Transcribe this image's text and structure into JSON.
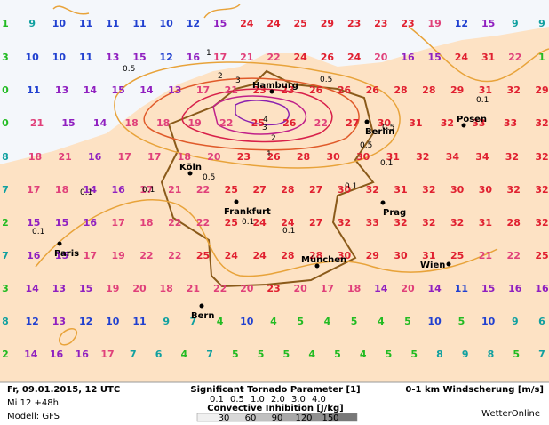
{
  "map": {
    "grid": [
      [
        "1",
        "9",
        "10",
        "11",
        "11",
        "11",
        "10",
        "12",
        "15",
        "24",
        "24",
        "25",
        "29",
        "23",
        "23",
        "23",
        "19",
        "12",
        "15",
        "9",
        "9"
      ],
      [
        "3",
        "10",
        "10",
        "11",
        "13",
        "15",
        "12",
        "16",
        "17",
        "21",
        "22",
        "24",
        "26",
        "24",
        "20",
        "16",
        "15",
        "24",
        "31",
        "22",
        "1"
      ],
      [
        "0",
        "11",
        "13",
        "14",
        "15",
        "14",
        "13",
        "17",
        "21",
        "23",
        "23",
        "26",
        "26",
        "26",
        "28",
        "28",
        "29",
        "31",
        "32",
        "29"
      ],
      [
        "0",
        "21",
        "15",
        "14",
        "18",
        "18",
        "19",
        "22",
        "25",
        "26",
        "22",
        "27",
        "30",
        "31",
        "32",
        "33",
        "33",
        "32"
      ],
      [
        "8",
        "18",
        "21",
        "16",
        "17",
        "17",
        "18",
        "20",
        "23",
        "26",
        "28",
        "30",
        "30",
        "31",
        "32",
        "34",
        "34",
        "32",
        "32"
      ],
      [
        "7",
        "17",
        "18",
        "14",
        "16",
        "17",
        "21",
        "22",
        "25",
        "27",
        "28",
        "27",
        "30",
        "32",
        "31",
        "32",
        "30",
        "30",
        "32",
        "32"
      ],
      [
        "2",
        "15",
        "15",
        "16",
        "17",
        "18",
        "22",
        "22",
        "25",
        "24",
        "24",
        "27",
        "32",
        "33",
        "32",
        "32",
        "32",
        "31",
        "28",
        "32"
      ],
      [
        "7",
        "16",
        "15",
        "17",
        "19",
        "22",
        "22",
        "25",
        "24",
        "24",
        "28",
        "28",
        "30",
        "29",
        "30",
        "31",
        "25",
        "21",
        "22",
        "25"
      ],
      [
        "3",
        "14",
        "13",
        "15",
        "19",
        "20",
        "18",
        "21",
        "22",
        "20",
        "23",
        "20",
        "17",
        "18",
        "14",
        "20",
        "14",
        "11",
        "15",
        "16",
        "16"
      ],
      [
        "8",
        "12",
        "13",
        "12",
        "10",
        "11",
        "9",
        "7",
        "4",
        "10",
        "4",
        "5",
        "4",
        "5",
        "4",
        "5",
        "10",
        "5",
        "10",
        "9",
        "6"
      ],
      [
        "2",
        "14",
        "16",
        "16",
        "17",
        "7",
        "6",
        "4",
        "7",
        "5",
        "5",
        "5",
        "4",
        "5",
        "4",
        "5",
        "5",
        "8",
        "9",
        "8",
        "5",
        "7"
      ]
    ],
    "cities": [
      "Hamburg",
      "Berlin",
      "Posen",
      "Köln",
      "Frankfurt",
      "Prag",
      "Paris",
      "München",
      "Wien",
      "Bern"
    ],
    "contour_labels": [
      "0.5",
      "1",
      "2",
      "3",
      "4",
      "3",
      "2",
      "1",
      "0.5",
      "0.5",
      "0.1",
      "0.1",
      "0.1",
      "0.1",
      "0.1",
      "0.1",
      "0.1",
      "0.5",
      "0.1",
      "0.5"
    ]
  },
  "footer": {
    "date": "Fr, 09.01.2015, 12 UTC",
    "run": "Mi 12 +48h",
    "model": "Modell: GFS",
    "stp_title": "Significant Tornado Parameter [1]",
    "stp_levels": [
      "0.1",
      "0.5",
      "1.0",
      "2.0",
      "3.0",
      "4.0"
    ],
    "cin_title": "Convective Inhibition [J/kg]",
    "cin_levels": [
      "30",
      "60",
      "90",
      "120",
      "150"
    ],
    "shear_title": "0-1 km Windscherung [m/s]",
    "brand": "WetterOnline"
  }
}
